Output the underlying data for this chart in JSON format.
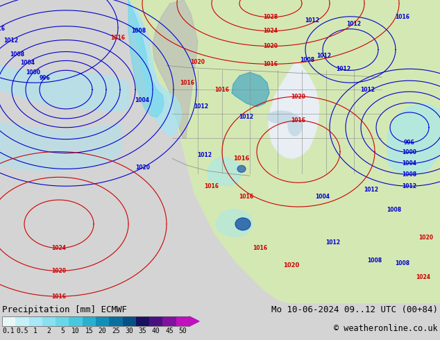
{
  "title_left": "Precipitation [mm] ECMWF",
  "title_right": "Mo 10-06-2024 09..12 UTC (00+84)",
  "copyright": "© weatheronline.co.uk",
  "colorbar_labels": [
    "0.1",
    "0.5",
    "1",
    "2",
    "5",
    "10",
    "15",
    "20",
    "25",
    "30",
    "35",
    "40",
    "45",
    "50"
  ],
  "colorbar_colors": [
    "#e8f8f8",
    "#c8f0f8",
    "#a8e8f8",
    "#88e0f0",
    "#68d8e8",
    "#48c8e0",
    "#28b0d0",
    "#1090b8",
    "#0870a0",
    "#065088",
    "#1a1060",
    "#4a1080",
    "#8010a0",
    "#c010c0"
  ],
  "ocean_color": "#e8eef4",
  "land_color": "#d4e8b4",
  "gray_land_color": "#b8b8b8",
  "bg_color": "#d4d4d4",
  "bottom_bg": "#d4d4d4",
  "font_color": "#000000",
  "blue_isobar_color": "#0000cc",
  "red_isobar_color": "#cc0000",
  "prec_light_cyan": "#a0e8f8",
  "prec_cyan": "#60d8f0",
  "prec_med_blue": "#1090c8",
  "prec_dark_blue": "#0040a0",
  "prec_deep_blue": "#000080",
  "title_fs": 9,
  "tick_fs": 7,
  "label_fs": 5.5
}
